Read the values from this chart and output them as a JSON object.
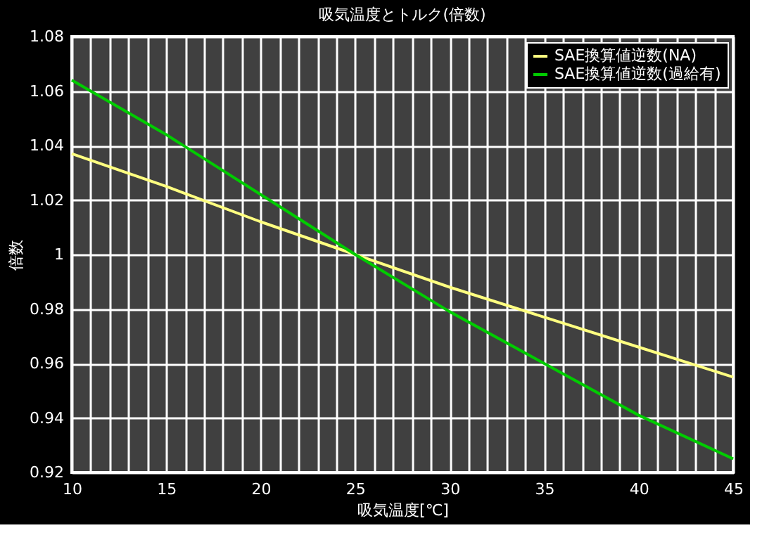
{
  "chart_data": {
    "type": "line",
    "title": "吸気温度とトルク(倍数)",
    "xlabel": "吸気温度[℃]",
    "ylabel": "倍数",
    "x": [
      10,
      15,
      20,
      25,
      30,
      35,
      40,
      45
    ],
    "series": [
      {
        "name": "SAE換算値逆数(NA)",
        "color": "#ffff80",
        "values": [
          1.037,
          1.025,
          1.012,
          1.0,
          0.988,
          0.977,
          0.966,
          0.955
        ]
      },
      {
        "name": "SAE換算値逆数(過給有)",
        "color": "#00cc00",
        "values": [
          1.064,
          1.044,
          1.022,
          1.0,
          0.979,
          0.96,
          0.941,
          0.925
        ]
      }
    ],
    "xlim": [
      10,
      45
    ],
    "xticks": [
      10,
      {
        "value": 11,
        "label": null
      },
      {
        "value": 12,
        "label": null
      },
      {
        "value": 13,
        "label": null
      },
      {
        "value": 14,
        "label": null
      },
      15,
      {
        "value": 16,
        "label": null
      },
      {
        "value": 17,
        "label": null
      },
      {
        "value": 18,
        "label": null
      },
      {
        "value": 19,
        "label": null
      },
      20,
      {
        "value": 21,
        "label": null
      },
      {
        "value": 22,
        "label": null
      },
      {
        "value": 23,
        "label": null
      },
      {
        "value": 24,
        "label": null
      },
      25,
      {
        "value": 26,
        "label": null
      },
      {
        "value": 27,
        "label": null
      },
      {
        "value": 28,
        "label": null
      },
      {
        "value": 29,
        "label": null
      },
      30,
      {
        "value": 31,
        "label": null
      },
      {
        "value": 32,
        "label": null
      },
      {
        "value": 33,
        "label": null
      },
      {
        "value": 34,
        "label": null
      },
      35,
      {
        "value": 36,
        "label": null
      },
      {
        "value": 37,
        "label": null
      },
      {
        "value": 38,
        "label": null
      },
      {
        "value": 39,
        "label": null
      },
      40,
      {
        "value": 41,
        "label": null
      },
      {
        "value": 42,
        "label": null
      },
      {
        "value": 43,
        "label": null
      },
      {
        "value": 44,
        "label": null
      },
      45
    ],
    "ylim": [
      0.92,
      1.08
    ],
    "yticks": [
      0.92,
      0.94,
      0.96,
      0.98,
      1,
      1.02,
      1.04,
      1.06,
      1.08
    ],
    "grid": true,
    "legend": "top right",
    "marker": "none",
    "line_style": "solid"
  }
}
